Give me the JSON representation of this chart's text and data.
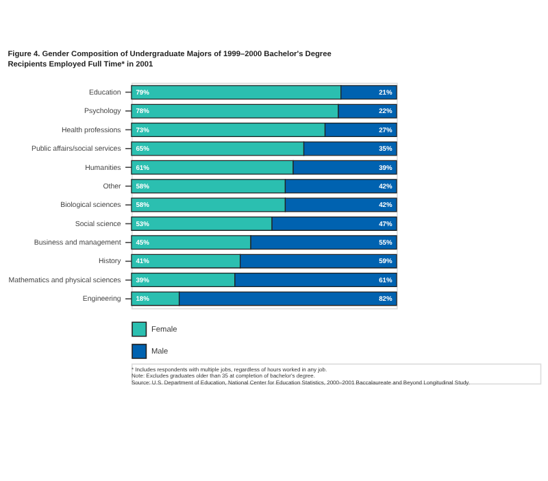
{
  "chart_data": {
    "type": "bar",
    "orientation": "horizontal",
    "stacked": true,
    "title": [
      "Figure 4. Gender Composition of Undergraduate Majors of 1999–2000 Bachelor's Degree",
      "Recipients Employed Full Time* in 2001"
    ],
    "categories": [
      "Education",
      "Psychology",
      "Health professions",
      "Public affairs/social services",
      "Humanities",
      "Other",
      "Biological sciences",
      "Social science",
      "Business and management",
      "History",
      "Mathematics and physical sciences",
      "Engineering"
    ],
    "series": [
      {
        "name": "Female",
        "color": "#2bbfb0",
        "values": [
          79,
          78,
          73,
          65,
          61,
          58,
          58,
          53,
          45,
          41,
          39,
          18
        ],
        "value_labels": [
          "79%",
          "78%",
          "73%",
          "65%",
          "61%",
          "58%",
          "58%",
          "53%",
          "45%",
          "41%",
          "39%",
          "18%"
        ]
      },
      {
        "name": "Male",
        "color": "#0062b0",
        "values": [
          21,
          22,
          27,
          35,
          39,
          42,
          42,
          47,
          55,
          59,
          61,
          82
        ],
        "value_labels": [
          "21%",
          "22%",
          "27%",
          "35%",
          "39%",
          "42%",
          "42%",
          "47%",
          "55%",
          "59%",
          "61%",
          "82%"
        ]
      }
    ],
    "legend": "bottom left",
    "annotations": [
      "* Includes respondents with multiple jobs, regardless of hours worked in any job.",
      "Note: Excludes graduates older than 35 at completion of bachelor's degree.",
      "Source: U.S. Department of Education, National Center for Education Statistics, 2000–2001 Baccalaureate and Beyond Longitudinal Study."
    ]
  }
}
